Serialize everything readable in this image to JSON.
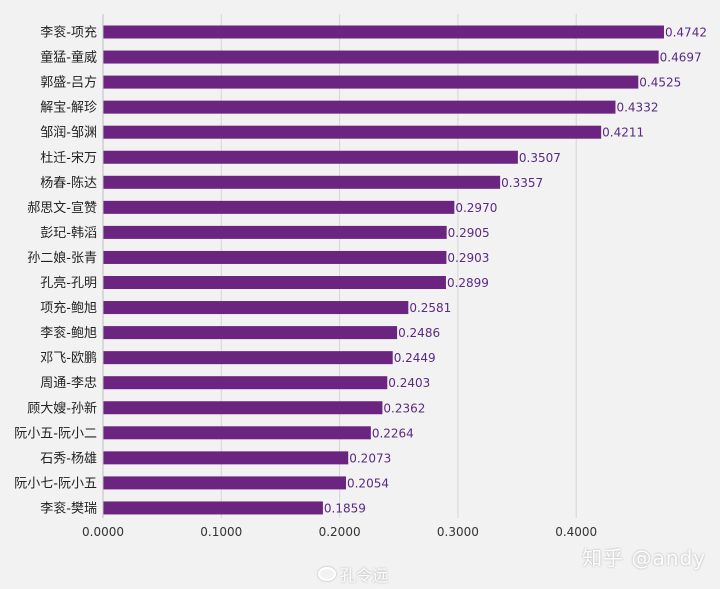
{
  "chart_data": {
    "type": "bar",
    "orientation": "horizontal",
    "categories": [
      "李衮-项充",
      "童猛-童威",
      "郭盛-吕方",
      "解宝-解珍",
      "邹润-邹渊",
      "杜迁-宋万",
      "杨春-陈达",
      "郝思文-宣赞",
      "彭玘-韩滔",
      "孙二娘-张青",
      "孔亮-孔明",
      "项充-鲍旭",
      "李衮-鲍旭",
      "邓飞-欧鹏",
      "周通-李忠",
      "顾大嫂-孙新",
      "阮小五-阮小二",
      "石秀-杨雄",
      "阮小七-阮小五",
      "李衮-樊瑞"
    ],
    "values": [
      0.4742,
      0.4697,
      0.4525,
      0.4332,
      0.4211,
      0.3507,
      0.3357,
      0.297,
      0.2905,
      0.2903,
      0.2899,
      0.2581,
      0.2486,
      0.2449,
      0.2403,
      0.2362,
      0.2264,
      0.2073,
      0.2054,
      0.1859
    ],
    "value_labels": [
      "0.4742",
      "0.4697",
      "0.4525",
      "0.4332",
      "0.4211",
      "0.3507",
      "0.3357",
      "0.2970",
      "0.2905",
      "0.2903",
      "0.2899",
      "0.2581",
      "0.2486",
      "0.2449",
      "0.2403",
      "0.2362",
      "0.2264",
      "0.2073",
      "0.2054",
      "0.1859"
    ],
    "x_ticks": [
      0,
      0.1,
      0.2,
      0.3,
      0.4
    ],
    "x_tick_labels": [
      "0.0000",
      "0.1000",
      "0.2000",
      "0.3000",
      "0.4000"
    ],
    "xlim": [
      0,
      0.5
    ],
    "grid": true,
    "legend": "none",
    "bar_color": "#6b2480",
    "label_color": "#5a2a82"
  },
  "watermarks": {
    "zhihu": "知乎 @andy",
    "weibo": "孔令远"
  }
}
